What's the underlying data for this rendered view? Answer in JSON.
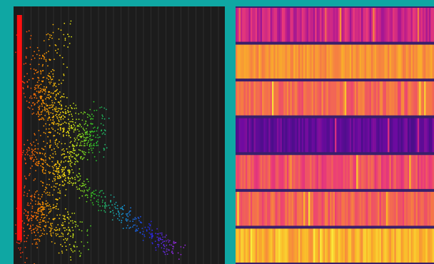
{
  "colors": {
    "background": "#0fa7a3",
    "plot_background": "#1c1c1c",
    "gridline": "#3a3a3a"
  },
  "chart_data": [
    {
      "type": "scatter",
      "title": "",
      "xlabel": "",
      "ylabel": "",
      "grid": true,
      "colormap": "rainbow",
      "bands": [
        {
          "from": [
            0.05,
            0.98
          ],
          "to": [
            0.22,
            0.1
          ],
          "spread": 0.06,
          "count": 220
        },
        {
          "from": [
            0.06,
            0.9
          ],
          "to": [
            0.42,
            0.4
          ],
          "spread": 0.05,
          "count": 260
        },
        {
          "from": [
            0.05,
            0.55
          ],
          "to": [
            0.78,
            0.96
          ],
          "spread": 0.035,
          "count": 420
        },
        {
          "from": [
            0.06,
            0.3
          ],
          "to": [
            0.42,
            0.55
          ],
          "spread": 0.06,
          "count": 260
        },
        {
          "from": [
            0.05,
            0.75
          ],
          "to": [
            0.3,
            0.92
          ],
          "spread": 0.07,
          "count": 220
        },
        {
          "from": [
            0.05,
            0.15
          ],
          "to": [
            0.28,
            0.6
          ],
          "spread": 0.08,
          "count": 260
        }
      ],
      "edge_column": {
        "x": 0.05,
        "color": "#ff1010"
      }
    },
    {
      "type": "heatmap",
      "title": "",
      "xlabel": "",
      "ylabel": "",
      "colormap": "plasma",
      "columns": 120,
      "rows": [
        {
          "base": 0.38,
          "var": 0.12
        },
        {
          "base": 0.74,
          "var": 0.08
        },
        {
          "base": 0.62,
          "var": 0.1
        },
        {
          "base": 0.15,
          "var": 0.06
        },
        {
          "base": 0.55,
          "var": 0.1
        },
        {
          "base": 0.6,
          "var": 0.1
        },
        {
          "base": 0.82,
          "var": 0.1
        }
      ]
    }
  ]
}
